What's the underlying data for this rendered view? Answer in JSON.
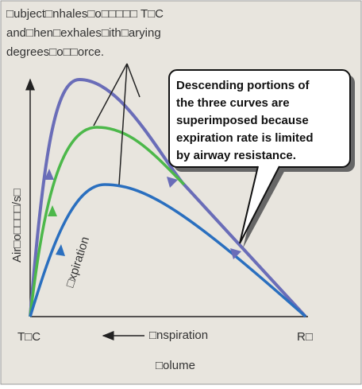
{
  "annotation": {
    "lines": [
      "□ubject□nhales□o□□□□□ T□C",
      "and□hen□exhales□ith□arying",
      "degrees□o□□orce."
    ]
  },
  "callout": {
    "lines": [
      "Descending portions of",
      "the three curves are",
      "superimposed because",
      "expiration rate is limited",
      "by airway resistance."
    ]
  },
  "y_axis_label": "Air□o□□□□/s□",
  "curve_label": "□xpiration",
  "x_axis": {
    "left_label": "T□C",
    "right_label": "R□",
    "arrow_label": "□nspiration",
    "title": "□olume"
  }
}
